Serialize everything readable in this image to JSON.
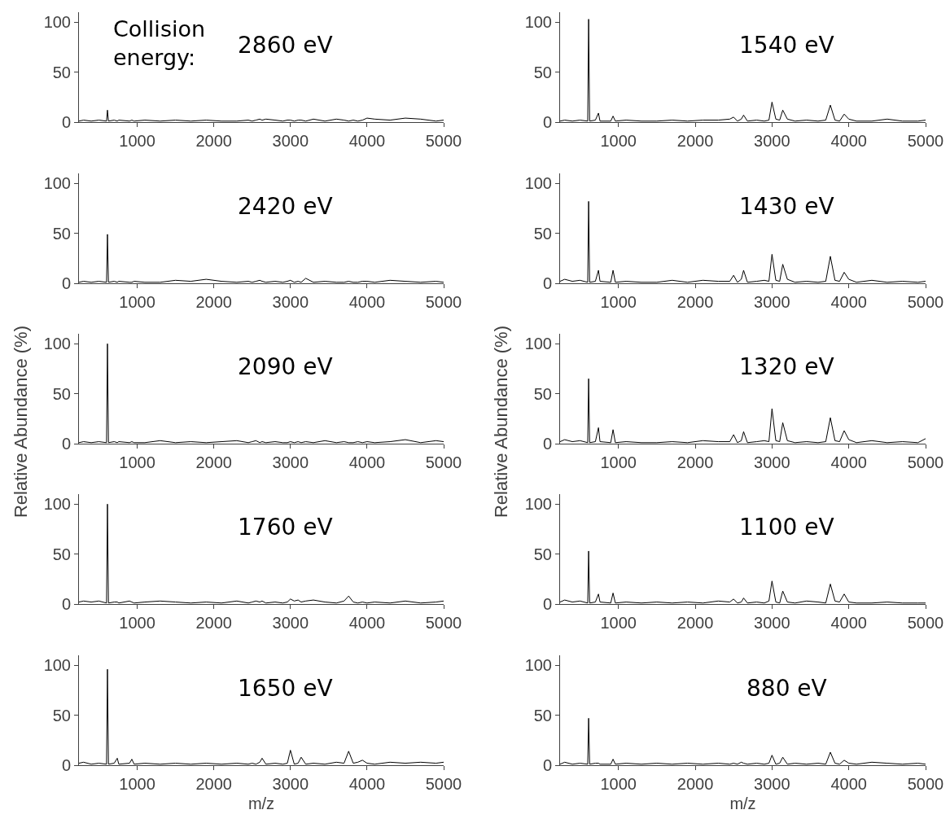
{
  "chart_data": [
    {
      "type": "line",
      "annotations": [
        "Collision\nenergy:",
        "2860 eV"
      ],
      "x": [
        240,
        300,
        400,
        500,
        600,
        612,
        625,
        700,
        740,
        760,
        900,
        930,
        960,
        1100,
        1300,
        1500,
        1700,
        1900,
        2100,
        2300,
        2450,
        2500,
        2550,
        2600,
        2630,
        2680,
        2800,
        2900,
        2960,
        3000,
        3050,
        3100,
        3140,
        3200,
        3300,
        3450,
        3600,
        3700,
        3760,
        3820,
        3880,
        3940,
        4000,
        4100,
        4300,
        4500,
        4700,
        4900,
        5000
      ],
      "series": [
        {
          "color": "#000000",
          "values": [
            1,
            2,
            1,
            2,
            1,
            12,
            1,
            2,
            1,
            2,
            1,
            2,
            1,
            2,
            1,
            2,
            1,
            2,
            1,
            1,
            2,
            1,
            2,
            3,
            2,
            3,
            2,
            1,
            2,
            2,
            1,
            2,
            2,
            1,
            3,
            1,
            3,
            2,
            1,
            2,
            1,
            2,
            4,
            3,
            2,
            4,
            3,
            1,
            2
          ]
        }
      ],
      "xlim": [
        240,
        5000
      ],
      "xticks": [
        1000,
        2000,
        3000,
        4000,
        5000
      ],
      "ylim": [
        0,
        110
      ],
      "yticks": [
        0,
        50,
        100
      ]
    },
    {
      "type": "line",
      "annotations": [
        "1540 eV"
      ],
      "x": [
        240,
        300,
        400,
        500,
        600,
        612,
        625,
        700,
        740,
        760,
        900,
        930,
        960,
        1100,
        1300,
        1500,
        1700,
        1900,
        2100,
        2300,
        2450,
        2500,
        2550,
        2600,
        2630,
        2680,
        2800,
        2900,
        2960,
        3000,
        3050,
        3100,
        3140,
        3200,
        3300,
        3450,
        3600,
        3700,
        3760,
        3820,
        3880,
        3940,
        4000,
        4100,
        4300,
        4500,
        4700,
        4900,
        5000
      ],
      "series": [
        {
          "color": "#000000",
          "values": [
            1,
            2,
            1,
            2,
            1,
            103,
            1,
            2,
            9,
            1,
            1,
            6,
            1,
            2,
            1,
            1,
            2,
            1,
            2,
            2,
            3,
            5,
            1,
            3,
            7,
            1,
            2,
            1,
            2,
            20,
            3,
            2,
            12,
            3,
            1,
            2,
            1,
            2,
            17,
            2,
            1,
            8,
            3,
            1,
            1,
            3,
            1,
            1,
            2
          ]
        }
      ],
      "xlim": [
        240,
        5000
      ],
      "xticks": [
        1000,
        2000,
        3000,
        4000,
        5000
      ],
      "ylim": [
        0,
        110
      ],
      "yticks": [
        0,
        50,
        100
      ]
    },
    {
      "type": "line",
      "annotations": [
        "2420 eV"
      ],
      "x": [
        240,
        300,
        400,
        500,
        600,
        612,
        625,
        700,
        740,
        760,
        900,
        930,
        960,
        1100,
        1300,
        1500,
        1700,
        1900,
        2100,
        2300,
        2450,
        2500,
        2550,
        2600,
        2630,
        2680,
        2800,
        2900,
        2960,
        3000,
        3050,
        3100,
        3140,
        3200,
        3300,
        3450,
        3600,
        3700,
        3760,
        3820,
        3880,
        3940,
        4000,
        4100,
        4300,
        4500,
        4700,
        4900,
        5000
      ],
      "series": [
        {
          "color": "#000000",
          "values": [
            1,
            2,
            1,
            2,
            1,
            49,
            1,
            2,
            1,
            2,
            1,
            1,
            2,
            1,
            1,
            3,
            2,
            4,
            2,
            1,
            2,
            1,
            2,
            3,
            2,
            1,
            2,
            1,
            2,
            3,
            1,
            2,
            1,
            5,
            1,
            2,
            1,
            1,
            2,
            1,
            1,
            2,
            2,
            1,
            3,
            2,
            1,
            2,
            1
          ]
        }
      ],
      "xlim": [
        240,
        5000
      ],
      "xticks": [
        1000,
        2000,
        3000,
        4000,
        5000
      ],
      "ylim": [
        0,
        110
      ],
      "yticks": [
        0,
        50,
        100
      ]
    },
    {
      "type": "line",
      "annotations": [
        "1430 eV"
      ],
      "x": [
        240,
        300,
        400,
        500,
        600,
        612,
        625,
        700,
        740,
        760,
        900,
        930,
        960,
        1100,
        1300,
        1500,
        1700,
        1900,
        2100,
        2300,
        2450,
        2500,
        2550,
        2600,
        2630,
        2680,
        2800,
        2900,
        2960,
        3000,
        3050,
        3100,
        3140,
        3200,
        3300,
        3450,
        3600,
        3700,
        3760,
        3820,
        3880,
        3940,
        4000,
        4100,
        4300,
        4500,
        4700,
        4900,
        5000
      ],
      "series": [
        {
          "color": "#000000",
          "values": [
            2,
            4,
            2,
            3,
            1,
            82,
            1,
            2,
            13,
            2,
            1,
            13,
            1,
            2,
            1,
            1,
            3,
            1,
            3,
            2,
            2,
            8,
            1,
            4,
            13,
            1,
            2,
            3,
            2,
            29,
            3,
            2,
            19,
            4,
            1,
            2,
            1,
            2,
            27,
            3,
            2,
            11,
            4,
            1,
            3,
            1,
            2,
            1,
            2
          ]
        }
      ],
      "xlim": [
        240,
        5000
      ],
      "xticks": [
        1000,
        2000,
        3000,
        4000,
        5000
      ],
      "ylim": [
        0,
        110
      ],
      "yticks": [
        0,
        50,
        100
      ]
    },
    {
      "type": "line",
      "annotations": [
        "2090 eV"
      ],
      "ylabel": "Relative Abundance (%)",
      "x": [
        240,
        300,
        400,
        500,
        600,
        612,
        625,
        700,
        740,
        760,
        900,
        930,
        960,
        1100,
        1300,
        1500,
        1700,
        1900,
        2100,
        2300,
        2450,
        2500,
        2550,
        2600,
        2630,
        2680,
        2800,
        2900,
        2960,
        3000,
        3050,
        3100,
        3140,
        3200,
        3300,
        3450,
        3600,
        3700,
        3760,
        3820,
        3880,
        3940,
        4000,
        4100,
        4300,
        4500,
        4700,
        4900,
        5000
      ],
      "series": [
        {
          "color": "#000000",
          "values": [
            1,
            2,
            1,
            2,
            1,
            100,
            1,
            2,
            1,
            2,
            1,
            2,
            1,
            1,
            3,
            1,
            2,
            1,
            2,
            3,
            1,
            2,
            3,
            1,
            2,
            1,
            2,
            1,
            1,
            2,
            1,
            2,
            1,
            2,
            1,
            3,
            1,
            2,
            1,
            1,
            2,
            1,
            2,
            1,
            2,
            4,
            1,
            3,
            2
          ]
        }
      ],
      "xlim": [
        240,
        5000
      ],
      "xticks": [
        1000,
        2000,
        3000,
        4000,
        5000
      ],
      "ylim": [
        0,
        110
      ],
      "yticks": [
        0,
        50,
        100
      ]
    },
    {
      "type": "line",
      "annotations": [
        "1320 eV"
      ],
      "ylabel": "Relative Abundance (%)",
      "x": [
        240,
        300,
        400,
        500,
        600,
        612,
        625,
        700,
        740,
        760,
        900,
        930,
        960,
        1100,
        1300,
        1500,
        1700,
        1900,
        2100,
        2300,
        2450,
        2500,
        2550,
        2600,
        2630,
        2680,
        2800,
        2900,
        2960,
        3000,
        3050,
        3100,
        3140,
        3200,
        3300,
        3450,
        3600,
        3700,
        3760,
        3820,
        3880,
        3940,
        4000,
        4100,
        4300,
        4500,
        4700,
        4900,
        5000
      ],
      "series": [
        {
          "color": "#000000",
          "values": [
            2,
            4,
            2,
            3,
            1,
            65,
            1,
            2,
            16,
            2,
            1,
            14,
            1,
            2,
            1,
            1,
            2,
            1,
            3,
            2,
            2,
            9,
            1,
            3,
            12,
            1,
            2,
            3,
            2,
            35,
            3,
            2,
            21,
            3,
            1,
            2,
            1,
            2,
            26,
            3,
            2,
            13,
            4,
            1,
            3,
            1,
            2,
            1,
            5
          ]
        }
      ],
      "xlim": [
        240,
        5000
      ],
      "xticks": [
        1000,
        2000,
        3000,
        4000,
        5000
      ],
      "ylim": [
        0,
        110
      ],
      "yticks": [
        0,
        50,
        100
      ]
    },
    {
      "type": "line",
      "annotations": [
        "1760 eV"
      ],
      "x": [
        240,
        300,
        400,
        500,
        600,
        612,
        625,
        700,
        740,
        760,
        900,
        930,
        960,
        1100,
        1300,
        1500,
        1700,
        1900,
        2100,
        2300,
        2450,
        2500,
        2550,
        2600,
        2630,
        2680,
        2800,
        2900,
        2960,
        3000,
        3050,
        3100,
        3140,
        3200,
        3300,
        3450,
        3600,
        3700,
        3760,
        3820,
        3880,
        3940,
        4000,
        4100,
        4300,
        4500,
        4700,
        4900,
        5000
      ],
      "series": [
        {
          "color": "#000000",
          "values": [
            2,
            3,
            2,
            3,
            1,
            100,
            1,
            2,
            2,
            1,
            3,
            2,
            1,
            2,
            3,
            2,
            1,
            2,
            1,
            3,
            1,
            2,
            3,
            2,
            3,
            1,
            2,
            1,
            2,
            5,
            3,
            4,
            2,
            3,
            4,
            2,
            1,
            3,
            8,
            2,
            1,
            2,
            1,
            2,
            1,
            3,
            1,
            2,
            3
          ]
        }
      ],
      "xlim": [
        240,
        5000
      ],
      "xticks": [
        1000,
        2000,
        3000,
        4000,
        5000
      ],
      "ylim": [
        0,
        110
      ],
      "yticks": [
        0,
        50,
        100
      ]
    },
    {
      "type": "line",
      "annotations": [
        "1100 eV"
      ],
      "x": [
        240,
        300,
        400,
        500,
        600,
        612,
        625,
        700,
        740,
        760,
        900,
        930,
        960,
        1100,
        1300,
        1500,
        1700,
        1900,
        2100,
        2300,
        2450,
        2500,
        2550,
        2600,
        2630,
        2680,
        2800,
        2900,
        2960,
        3000,
        3050,
        3100,
        3140,
        3200,
        3300,
        3450,
        3600,
        3700,
        3760,
        3820,
        3880,
        3940,
        4000,
        4100,
        4300,
        4500,
        4700,
        4900,
        5000
      ],
      "series": [
        {
          "color": "#000000",
          "values": [
            2,
            4,
            2,
            3,
            1,
            53,
            1,
            2,
            10,
            2,
            1,
            11,
            1,
            2,
            1,
            2,
            1,
            2,
            1,
            3,
            2,
            5,
            1,
            2,
            6,
            1,
            2,
            1,
            3,
            23,
            2,
            1,
            13,
            2,
            1,
            3,
            2,
            1,
            20,
            3,
            2,
            10,
            2,
            1,
            1,
            2,
            1,
            1,
            1
          ]
        }
      ],
      "xlim": [
        240,
        5000
      ],
      "xticks": [
        1000,
        2000,
        3000,
        4000,
        5000
      ],
      "ylim": [
        0,
        110
      ],
      "yticks": [
        0,
        50,
        100
      ]
    },
    {
      "type": "line",
      "annotations": [
        "1650 eV"
      ],
      "xlabel": "m/z",
      "x": [
        240,
        300,
        400,
        500,
        600,
        612,
        625,
        700,
        740,
        760,
        900,
        930,
        960,
        1100,
        1300,
        1500,
        1700,
        1900,
        2100,
        2300,
        2450,
        2500,
        2550,
        2600,
        2630,
        2680,
        2800,
        2900,
        2960,
        3000,
        3050,
        3100,
        3140,
        3200,
        3300,
        3450,
        3600,
        3700,
        3760,
        3820,
        3880,
        3940,
        4000,
        4100,
        4300,
        4500,
        4700,
        4900,
        5000
      ],
      "series": [
        {
          "color": "#000000",
          "values": [
            2,
            3,
            1,
            2,
            1,
            96,
            1,
            2,
            7,
            1,
            2,
            6,
            1,
            2,
            1,
            2,
            1,
            2,
            1,
            2,
            1,
            2,
            1,
            3,
            7,
            1,
            2,
            1,
            2,
            15,
            1,
            2,
            8,
            1,
            2,
            1,
            3,
            2,
            14,
            2,
            3,
            5,
            2,
            1,
            3,
            2,
            3,
            2,
            3
          ]
        }
      ],
      "xlim": [
        240,
        5000
      ],
      "xticks": [
        1000,
        2000,
        3000,
        4000,
        5000
      ],
      "ylim": [
        0,
        110
      ],
      "yticks": [
        0,
        50,
        100
      ]
    },
    {
      "type": "line",
      "annotations": [
        "880 eV"
      ],
      "xlabel": "m/z",
      "x": [
        240,
        300,
        400,
        500,
        600,
        612,
        625,
        700,
        740,
        760,
        900,
        930,
        960,
        1100,
        1300,
        1500,
        1700,
        1900,
        2100,
        2300,
        2450,
        2500,
        2550,
        2600,
        2630,
        2680,
        2800,
        2900,
        2960,
        3000,
        3050,
        3100,
        3140,
        3200,
        3300,
        3450,
        3600,
        3700,
        3760,
        3820,
        3880,
        3940,
        4000,
        4100,
        4300,
        4500,
        4700,
        4900,
        5000
      ],
      "series": [
        {
          "color": "#000000",
          "values": [
            1,
            3,
            1,
            2,
            1,
            47,
            1,
            2,
            2,
            1,
            1,
            6,
            1,
            2,
            1,
            2,
            1,
            2,
            1,
            2,
            1,
            2,
            1,
            3,
            2,
            1,
            2,
            1,
            2,
            10,
            1,
            2,
            8,
            1,
            2,
            1,
            2,
            1,
            13,
            2,
            1,
            5,
            2,
            1,
            3,
            2,
            1,
            2,
            1
          ]
        }
      ],
      "xlim": [
        240,
        5000
      ],
      "xticks": [
        1000,
        2000,
        3000,
        4000,
        5000
      ],
      "ylim": [
        0,
        110
      ],
      "yticks": [
        0,
        50,
        100
      ]
    }
  ]
}
